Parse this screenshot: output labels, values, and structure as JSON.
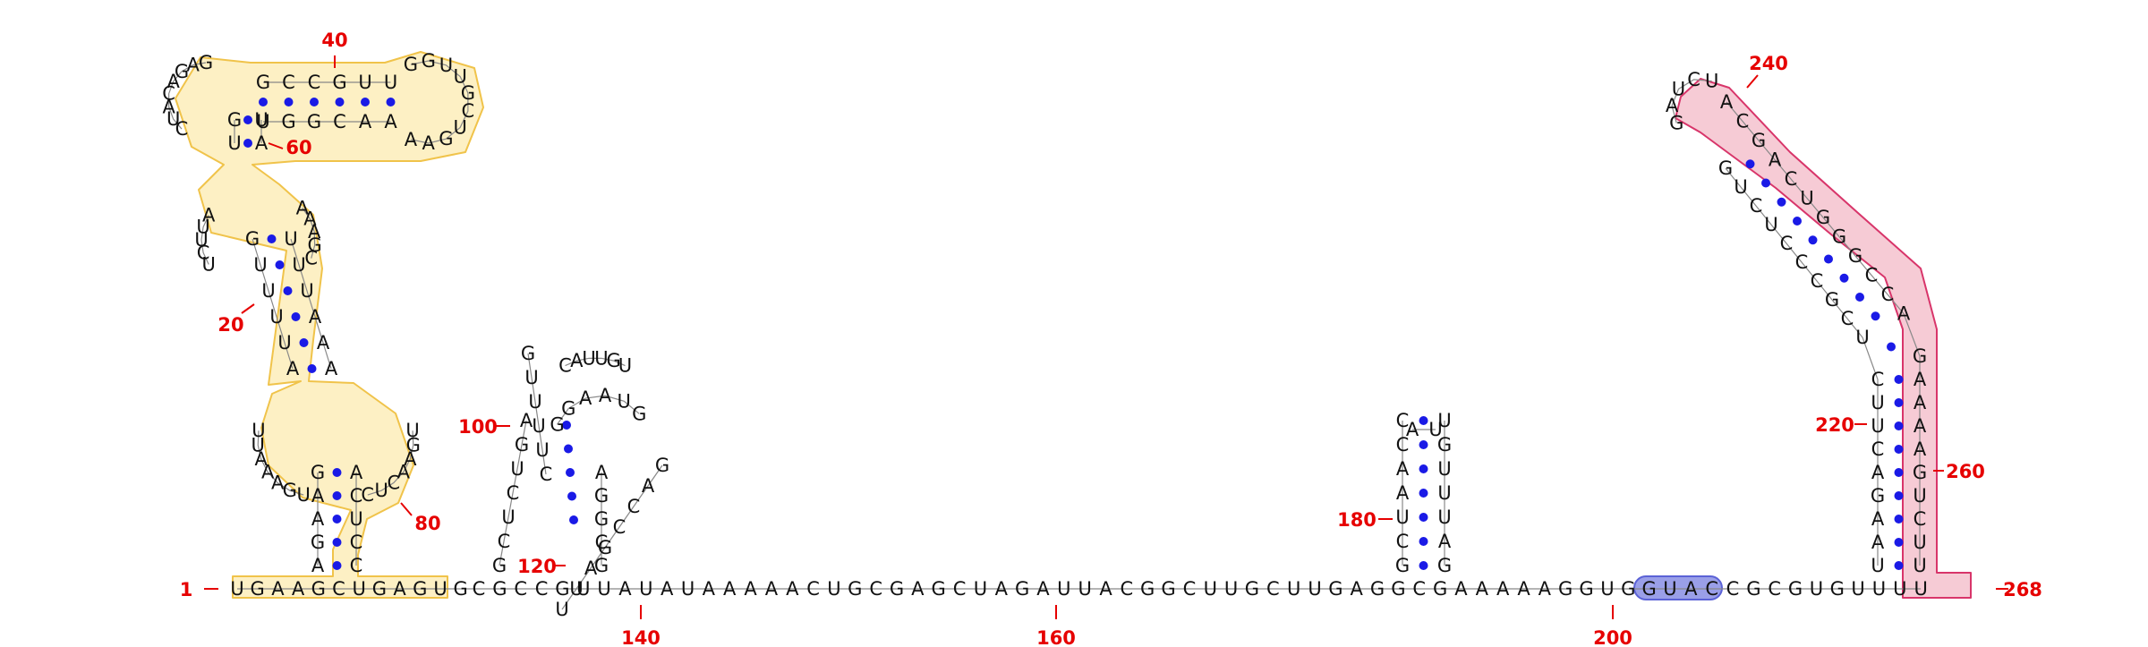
{
  "diagram": {
    "title": "RNA secondary structure diagram",
    "colors": {
      "background": "#ffffff",
      "nucleotide": "#111111",
      "backbone": "#888888",
      "base_pair": "#1a1ae6",
      "position_number": "#e60000",
      "yellow_fill": "#fdf0c4",
      "yellow_stroke": "#f0c34a",
      "pink_fill": "#f6cbd5",
      "pink_stroke": "#d8356a",
      "blue_fill": "#9a9fe8",
      "blue_stroke": "#5b62d6"
    },
    "backbone_sequence": "CGCCGUUAUAUAAAAACUGCGAGCUAGAUUACGGCUUGCUUGAGGCGAAAAAGGUGGUACCGCGUGUUUU",
    "left_segment_sequence": "UGAAGCUGAGUG",
    "position_numbers": [
      "1",
      "20",
      "40",
      "60",
      "80",
      "100",
      "120",
      "140",
      "160",
      "180",
      "200",
      "220",
      "240",
      "260",
      "268"
    ],
    "hairpin_180": {
      "left_strand": [
        "G",
        "C",
        "U",
        "A",
        "A",
        "C",
        "C"
      ],
      "right_strand": [
        "G",
        "A",
        "U",
        "U",
        "U",
        "G",
        "U"
      ],
      "loop": [
        "A",
        "U"
      ]
    },
    "right_stem": {
      "left_strand": [
        "U",
        "A",
        "A",
        "G",
        "A",
        "C",
        "U",
        "U",
        "C",
        "U",
        "C",
        "G",
        "C",
        "C",
        "C",
        "U",
        "C",
        "U",
        "G"
      ],
      "right_strand": [
        "U",
        "U",
        "C",
        "U",
        "G",
        "A",
        "A",
        "A",
        "A",
        "G",
        "A",
        "C",
        "C",
        "G",
        "G",
        "G",
        "U",
        "C",
        "A",
        "G",
        "C",
        "A"
      ],
      "loop": [
        "G",
        "A",
        "U",
        "C",
        "U"
      ]
    },
    "domain_120": {
      "outer_left": [
        "G",
        "C",
        "U",
        "C",
        "U",
        "G",
        "A"
      ],
      "outer_loop": [
        "C",
        "A",
        "U",
        "U",
        "G",
        "U"
      ],
      "outer_right": [
        "G",
        "A",
        "C",
        "C",
        "G",
        "A",
        "U",
        "U"
      ],
      "inner_left": [
        "C",
        "U",
        "U",
        "U",
        "U",
        "G"
      ],
      "inner_right": [
        "G",
        "C",
        "G",
        "G",
        "A"
      ],
      "inner_loop": [
        "G",
        "G",
        "A",
        "A",
        "U",
        "G"
      ]
    },
    "left_domain": {
      "stem1_left": [
        "A",
        "G",
        "A",
        "A",
        "G"
      ],
      "stem1_right": [
        "C",
        "C",
        "U",
        "C",
        "A"
      ],
      "loop_80_left": [
        "U",
        "G",
        "A",
        "A",
        "A",
        "U",
        "U"
      ],
      "loop_80_right": [
        "C",
        "U",
        "C",
        "A",
        "A",
        "G",
        "U"
      ],
      "stem2_left": [
        "A",
        "U",
        "U",
        "U",
        "U",
        "G"
      ],
      "stem2_right": [
        "A",
        "A",
        "A",
        "U",
        "U",
        "U"
      ],
      "loop_20_left": [
        "U",
        "C",
        "U",
        "U",
        "A"
      ],
      "loop_20_right": [
        "C",
        "G",
        "A",
        "A",
        "A"
      ],
      "stem3_left": [
        "U",
        "G"
      ],
      "stem3_right": [
        "A",
        "U"
      ],
      "loop_top_left": [
        "C",
        "U",
        "A",
        "C",
        "A",
        "G",
        "A",
        "G"
      ],
      "hairpin_top": [
        "G",
        "C",
        "C",
        "G",
        "U",
        "U"
      ],
      "hairpin_bottom": [
        "U",
        "G",
        "G",
        "C",
        "A",
        "A"
      ],
      "hairpin_loop": [
        "G",
        "G",
        "U",
        "U",
        "G",
        "C",
        "U",
        "G",
        "A",
        "A"
      ]
    }
  }
}
